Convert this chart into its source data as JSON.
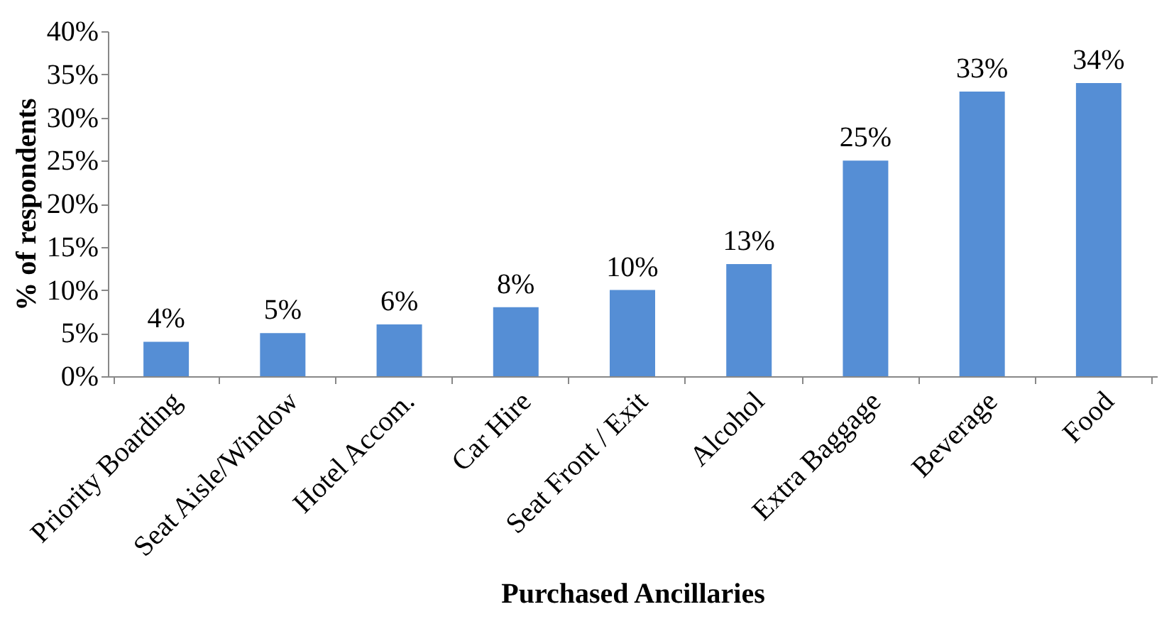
{
  "chart_data": {
    "type": "bar",
    "xlabel": "Purchased Ancillaries",
    "ylabel": "% of respondents",
    "categories": [
      "Priority Boarding",
      "Seat Aisle/Window",
      "Hotel Accom.",
      "Car Hire",
      "Seat Front / Exit",
      "Alcohol",
      "Extra Baggage",
      "Beverage",
      "Food"
    ],
    "values": [
      4,
      5,
      6,
      8,
      10,
      13,
      25,
      33,
      34
    ],
    "value_labels": [
      "4%",
      "5%",
      "6%",
      "8%",
      "10%",
      "13%",
      "25%",
      "33%",
      "34%"
    ],
    "color": "#558ed5",
    "ylim": [
      0,
      40
    ],
    "yticks": [
      {
        "value": 0,
        "label": "0%"
      },
      {
        "value": 5,
        "label": "5%"
      },
      {
        "value": 10,
        "label": "10%"
      },
      {
        "value": 15,
        "label": "15%"
      },
      {
        "value": 20,
        "label": "20%"
      },
      {
        "value": 25,
        "label": "25%"
      },
      {
        "value": 30,
        "label": "30%"
      },
      {
        "value": 35,
        "label": "35%"
      },
      {
        "value": 40,
        "label": "40%"
      }
    ],
    "grid": false
  }
}
